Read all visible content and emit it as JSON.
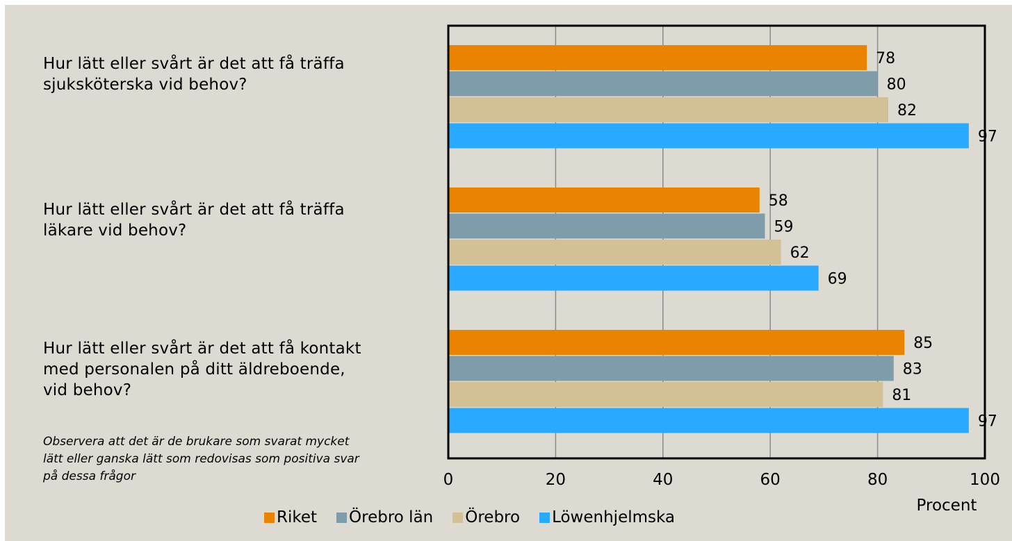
{
  "questions": {
    "q1": "Hur lätt eller svårt är det att få träffa\nsjuksköterska vid behov?",
    "q2": "Hur lätt eller svårt är det att få träffa\nläkare vid behov?",
    "q3": "Hur lätt eller svårt är det att få kontakt\nmed personalen på ditt äldreboende,\nvid behov?"
  },
  "note": "Observera att det är de brukare som svarat mycket\nlätt eller ganska lätt som redovisas som positiva svar\npå dessa frågor",
  "chart_data": {
    "type": "bar",
    "orientation": "horizontal",
    "categories": [
      "Hur lätt eller svårt är det att få träffa sjuksköterska vid behov?",
      "Hur lätt eller svårt är det att få träffa läkare vid behov?",
      "Hur lätt eller svårt är det att få kontakt med personalen på ditt äldreboende, vid behov?"
    ],
    "series": [
      {
        "name": "Riket",
        "color": "#e98300",
        "values": [
          78,
          58,
          85
        ]
      },
      {
        "name": "Örebro län",
        "color": "#7f9cab",
        "values": [
          80,
          59,
          83
        ]
      },
      {
        "name": "Örebro",
        "color": "#d4c095",
        "values": [
          82,
          62,
          81
        ]
      },
      {
        "name": "Löwenhjelmska",
        "color": "#27aaff",
        "values": [
          97,
          69,
          97
        ]
      }
    ],
    "xlabel": "Procent",
    "xlim": [
      0,
      100
    ],
    "xticks": [
      "0",
      "20",
      "40",
      "60",
      "80",
      "100"
    ],
    "grid": true,
    "legend": "bottom",
    "data_labels": true
  }
}
